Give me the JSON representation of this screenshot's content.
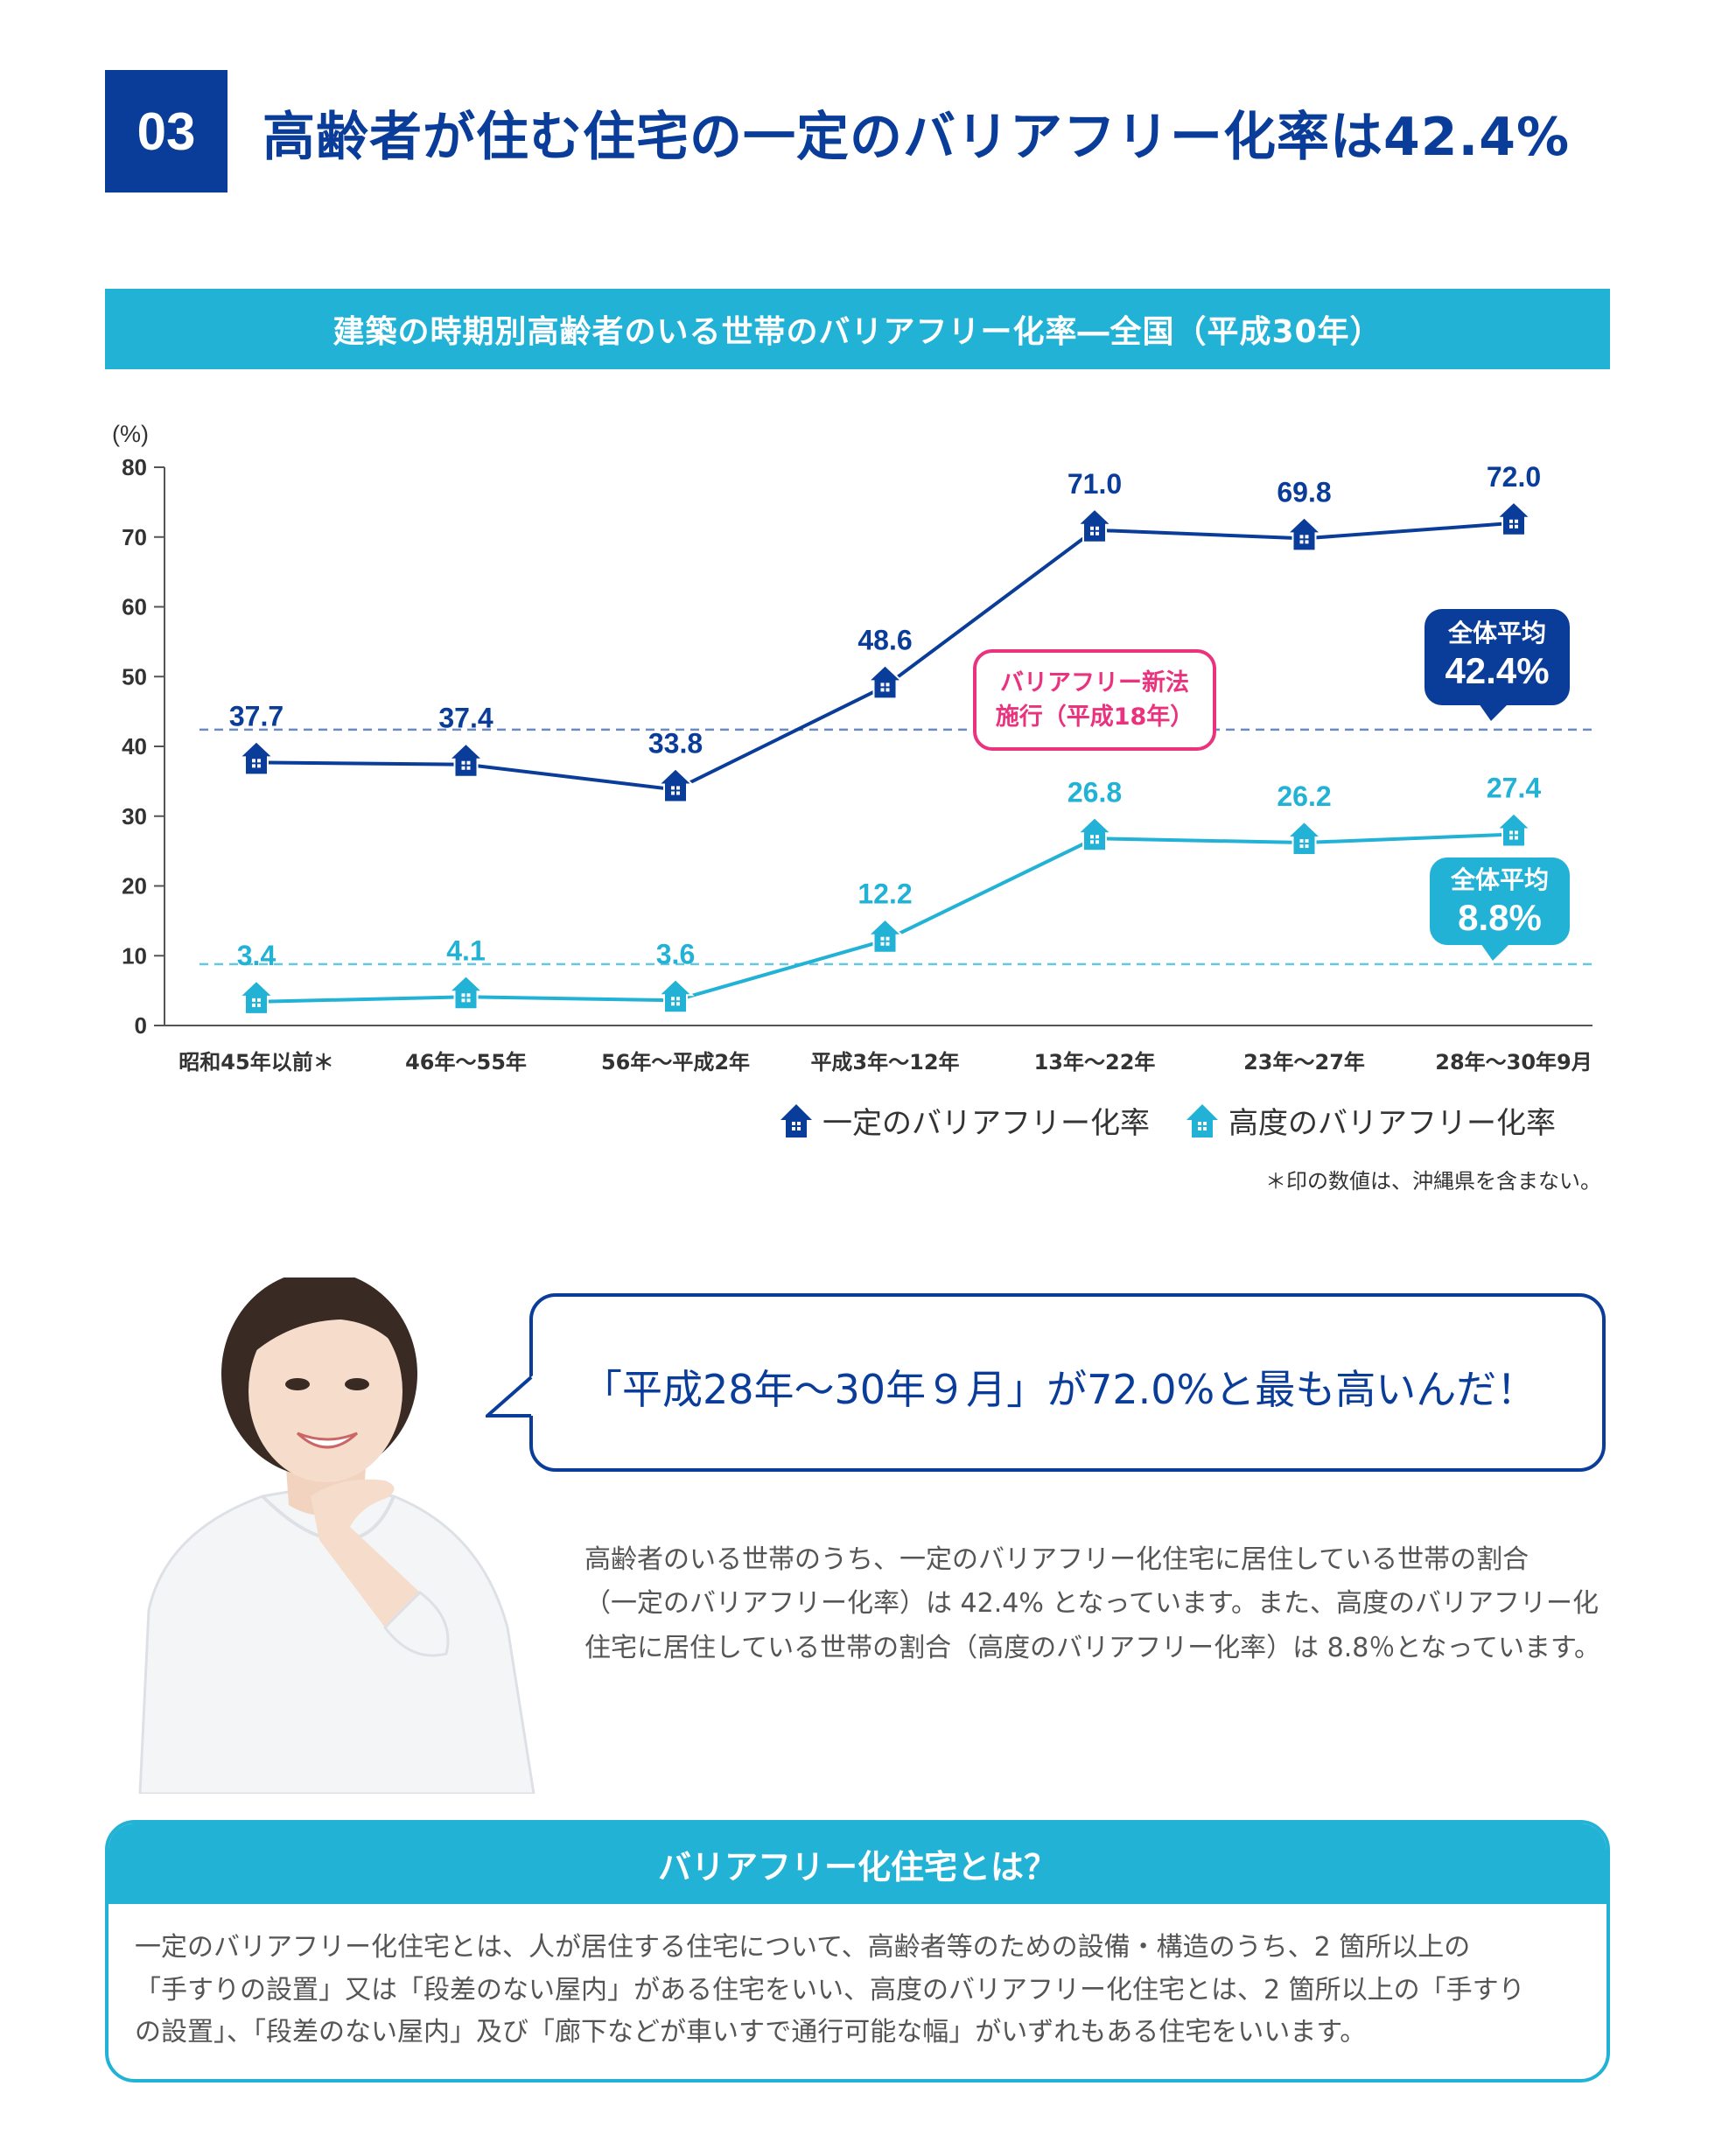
{
  "header": {
    "number": "03",
    "title": "高齢者が住む住宅の一定のバリアフリー化率は42.4%"
  },
  "chart_title": "建築の時期別高齢者のいる世帯のバリアフリー化率―全国（平成30年）",
  "chart_data": {
    "type": "line",
    "title": "建築の時期別高齢者のいる世帯のバリアフリー化率―全国（平成30年）",
    "ylabel": "(%)",
    "ylim": [
      0,
      80
    ],
    "yticks": [
      "0",
      "10",
      "20",
      "30",
      "40",
      "50",
      "60",
      "70",
      "80"
    ],
    "categories": [
      "昭和45年以前＊",
      "46年～55年",
      "56年～平成2年",
      "平成3年～12年",
      "13年～22年",
      "23年～27年",
      "28年～30年9月"
    ],
    "series": [
      {
        "name": "一定のバリアフリー化率",
        "values": [
          37.7,
          37.4,
          33.8,
          48.6,
          71.0,
          69.8,
          72.0
        ],
        "labels": [
          "37.7",
          "37.4",
          "33.8",
          "48.6",
          "71.0",
          "69.8",
          "72.0"
        ],
        "color": "#0a3d99"
      },
      {
        "name": "高度のバリアフリー化率",
        "values": [
          3.4,
          4.1,
          3.6,
          12.2,
          26.8,
          26.2,
          27.4
        ],
        "labels": [
          "3.4",
          "4.1",
          "3.6",
          "12.2",
          "26.8",
          "26.2",
          "27.4"
        ],
        "color": "#22b2d6"
      }
    ],
    "averages": [
      {
        "label": "全体平均",
        "value": 42.4,
        "text": "42.4%"
      },
      {
        "label": "全体平均",
        "value": 8.8,
        "text": "8.8%"
      }
    ],
    "annotation": {
      "line1": "バリアフリー新法",
      "line2": "施行（平成18年）"
    },
    "legend_position": "bottom-right"
  },
  "footnote": "＊印の数値は、沖縄県を含まない。",
  "speech": "「平成28年～30年９月」が72.0%と最も高いんだ！",
  "body_lines": [
    "高齢者のいる世帯のうち、一定のバリアフリー化住宅に居住している世帯の割合",
    "（一定のバリアフリー化率）は 42.4% となっています。また、高度のバリアフリー化",
    "住宅に居住している世帯の割合（高度のバリアフリー化率）は 8.8％となっています。"
  ],
  "info": {
    "heading": "バリアフリー化住宅とは？",
    "lines": [
      "一定のバリアフリー化住宅とは、人が居住する住宅について、高齢者等のための設備・構造のうち、2 箇所以上の",
      "「手すりの設置」又は「段差のない屋内」がある住宅をいい、高度のバリアフリー化住宅とは、2 箇所以上の「手すり",
      "の設置」、「段差のない屋内」及び「廊下などが車いすで通行可能な幅」がいずれもある住宅をいいます。"
    ]
  },
  "colors": {
    "dark_blue": "#0a3d99",
    "light_blue": "#22b2d6",
    "pink": "#e9337f"
  },
  "icons": {
    "marker": "house-icon"
  }
}
